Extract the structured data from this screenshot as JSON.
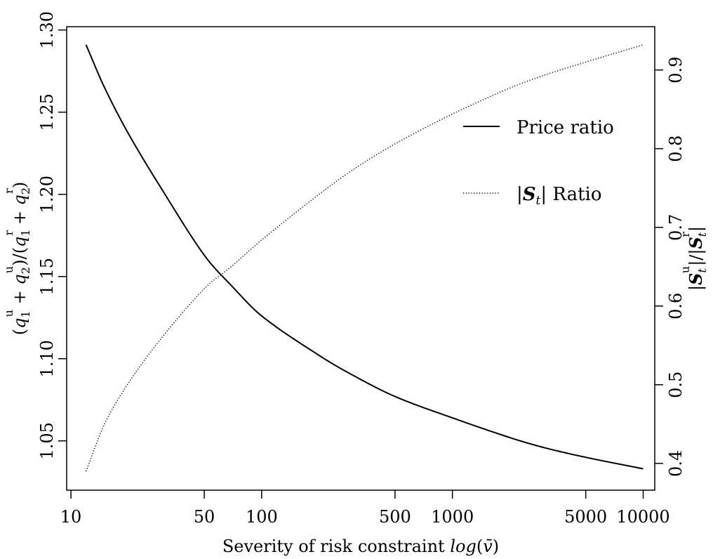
{
  "chart_data": {
    "type": "line",
    "xlabel": "Severity of risk constraint log(v̄)",
    "xscale": "log",
    "xlim": [
      9.5,
      11500
    ],
    "x_ticks": [
      10,
      50,
      100,
      500,
      1000,
      5000,
      10000
    ],
    "x_tick_labels": [
      "10",
      "50",
      "100",
      "500",
      "1000",
      "5000",
      "10000"
    ],
    "y_left": {
      "label": "(q₁ᵘ + q₂ᵘ)/(q₁ʳ + q₂ʳ)",
      "lim": [
        1.02,
        1.302
      ],
      "ticks": [
        1.05,
        1.1,
        1.15,
        1.2,
        1.25,
        1.3
      ],
      "tick_labels": [
        "1.05",
        "1.10",
        "1.15",
        "1.20",
        "1.25",
        "1.30"
      ]
    },
    "y_right": {
      "label": "|Sₜᵘ|/|Sₜʳ|",
      "lim": [
        0.366,
        0.955
      ],
      "ticks": [
        0.4,
        0.5,
        0.6,
        0.7,
        0.8,
        0.9
      ],
      "tick_labels": [
        "0.4",
        "0.5",
        "0.6",
        "0.7",
        "0.8",
        "0.9"
      ]
    },
    "legend_position": "top-right",
    "series": [
      {
        "name": "Price ratio",
        "axis": "left",
        "style": "solid",
        "x": [
          12,
          15,
          20,
          30,
          50,
          70,
          100,
          200,
          300,
          500,
          1000,
          2000,
          3000,
          5000,
          10000
        ],
        "y": [
          1.291,
          1.265,
          1.237,
          1.203,
          1.163,
          1.144,
          1.126,
          1.102,
          1.09,
          1.077,
          1.064,
          1.052,
          1.046,
          1.04,
          1.033
        ]
      },
      {
        "name": "|Sₜ| Ratio",
        "axis": "right",
        "style": "dotted",
        "x": [
          12,
          15,
          20,
          30,
          50,
          70,
          100,
          200,
          300,
          500,
          1000,
          2000,
          3000,
          5000,
          10000
        ],
        "y": [
          0.39,
          0.45,
          0.502,
          0.56,
          0.622,
          0.651,
          0.684,
          0.742,
          0.773,
          0.806,
          0.844,
          0.877,
          0.893,
          0.91,
          0.932
        ]
      }
    ]
  }
}
